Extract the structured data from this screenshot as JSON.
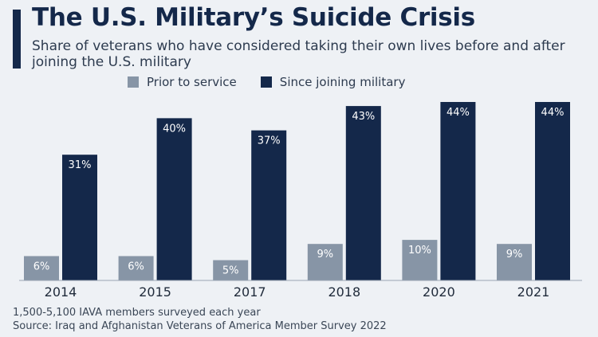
{
  "header": {
    "title": "The U.S. Military’s Suicide Crisis",
    "subtitle": "Share of veterans who have considered taking their own lives before and after joining the U.S. military"
  },
  "colors": {
    "prior": "#8795a6",
    "since": "#14284a",
    "background": "#eef1f5",
    "accent": "#14284a"
  },
  "chart_data": {
    "type": "bar",
    "categories": [
      "2014",
      "2015",
      "2017",
      "2018",
      "2020",
      "2021"
    ],
    "series": [
      {
        "name": "Prior to service",
        "values": [
          6,
          6,
          5,
          9,
          10,
          9
        ],
        "labels": [
          "6%",
          "6%",
          "5%",
          "9%",
          "10%",
          "9%"
        ]
      },
      {
        "name": "Since joining military",
        "values": [
          31,
          40,
          37,
          43,
          44,
          44
        ],
        "labels": [
          "31%",
          "40%",
          "37%",
          "43%",
          "44%",
          "44%"
        ]
      }
    ],
    "ylim": [
      0,
      44
    ],
    "grid": false,
    "legend": "top"
  },
  "footer": {
    "note": "1,500-5,100 IAVA members surveyed each year",
    "source": "Source: Iraq and Afghanistan Veterans of America Member Survey 2022"
  }
}
